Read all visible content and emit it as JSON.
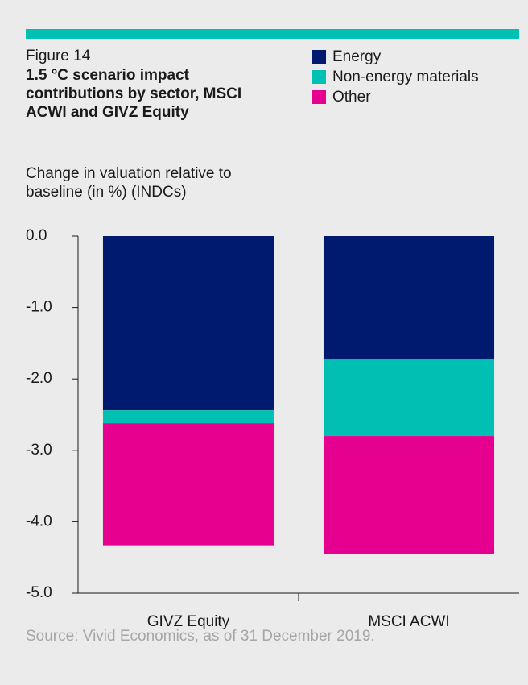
{
  "chart_data": {
    "type": "stacked_bar",
    "figure_label": "Figure 14",
    "title": "1.5 °C scenario impact contributions by sector, MSCI ACWI and GIVZ Equity",
    "y_label": "Change in valuation relative to baseline (in %) (INDCs)",
    "source": "Source: Vivid Economics, as of 31 December 2019.",
    "categories": [
      "GIVZ Equity",
      "MSCI ACWI"
    ],
    "series": [
      {
        "name": "Energy",
        "color": "#001a70",
        "values": [
          -2.44,
          -1.73
        ]
      },
      {
        "name": "Non-energy materials",
        "color": "#00bfb3",
        "values": [
          -0.18,
          -1.07
        ]
      },
      {
        "name": "Other",
        "color": "#e6008f",
        "values": [
          -1.71,
          -1.65
        ]
      }
    ],
    "ylim": [
      -5,
      0
    ],
    "yticks": [
      {
        "value": 0,
        "label": "0.0"
      },
      {
        "value": -1,
        "label": "-1.0"
      },
      {
        "value": -2,
        "label": "-2.0"
      },
      {
        "value": -3,
        "label": "-3.0"
      },
      {
        "value": -4,
        "label": "-4.0"
      },
      {
        "value": -5,
        "label": "-5.0"
      }
    ],
    "legend": "top-right"
  }
}
